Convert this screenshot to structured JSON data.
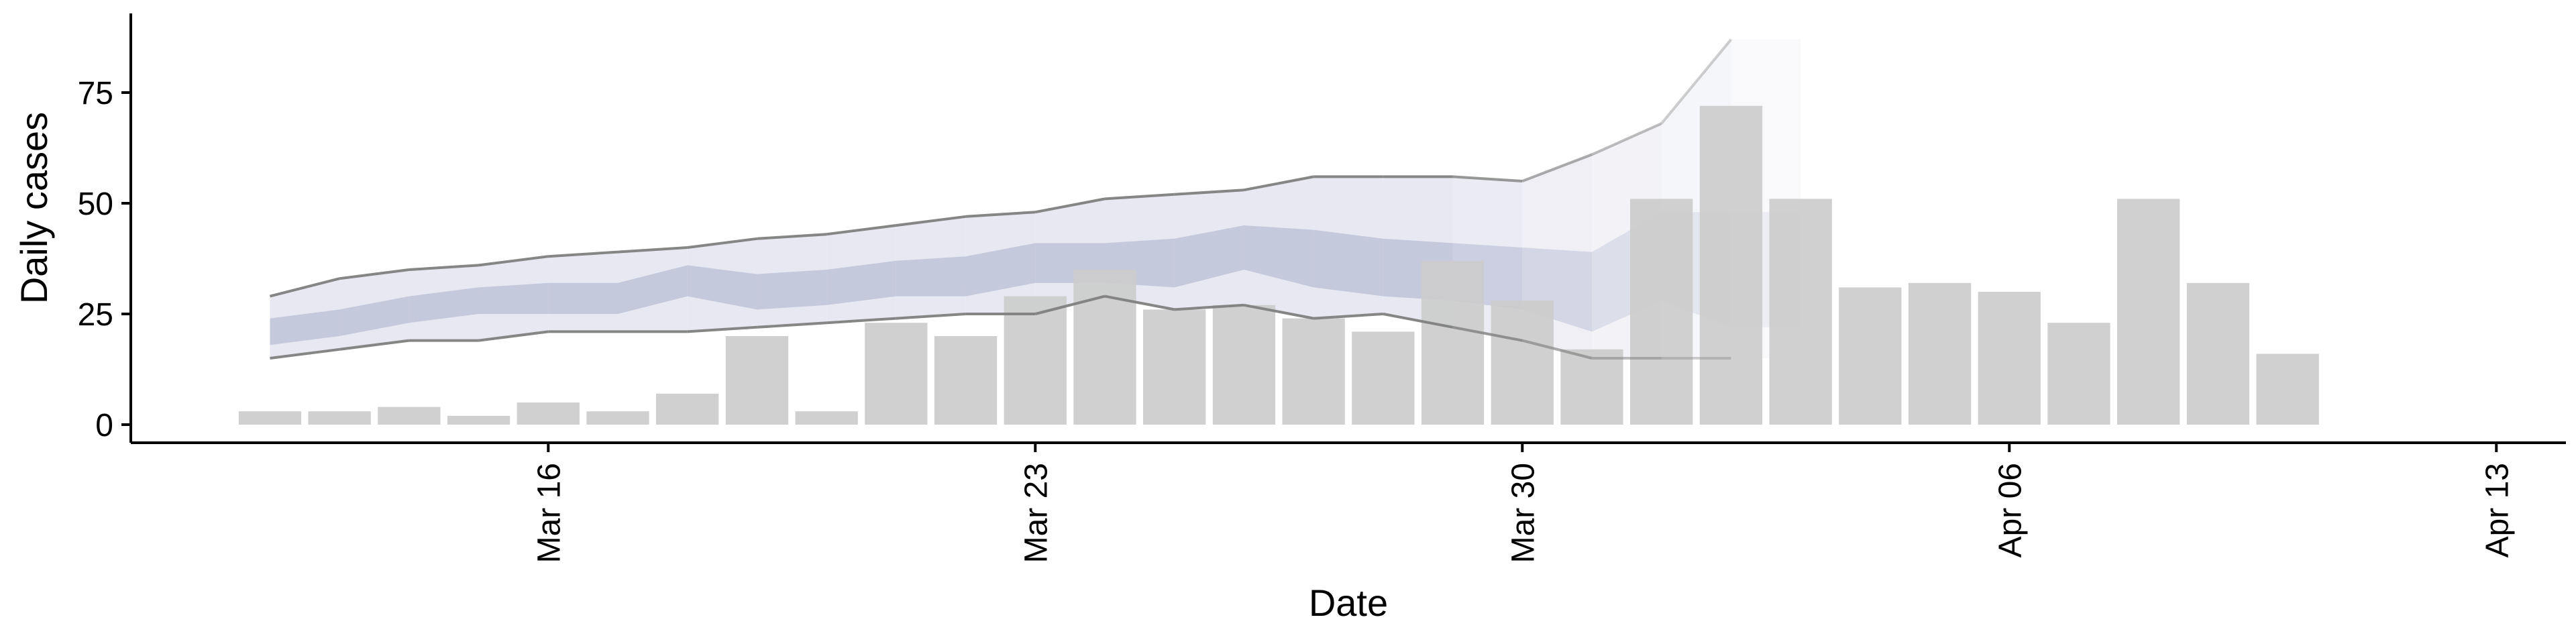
{
  "chart_data": {
    "type": "bar",
    "xlabel": "Date",
    "ylabel": "Daily cases",
    "xlim": [
      "2020-03-10",
      "2020-04-14"
    ],
    "ylim": [
      0,
      90
    ],
    "x_ticks": [
      {
        "date": "2020-03-16",
        "label": "Mar 16"
      },
      {
        "date": "2020-03-23",
        "label": "Mar 23"
      },
      {
        "date": "2020-03-30",
        "label": "Mar 30"
      },
      {
        "date": "2020-04-06",
        "label": "Apr 06"
      },
      {
        "date": "2020-04-13",
        "label": "Apr 13"
      }
    ],
    "y_ticks": [
      0,
      25,
      50,
      75
    ],
    "grid": false,
    "colors": {
      "bars": "#cccccc",
      "band": "#a9afcb",
      "line": "#808080"
    },
    "bars": {
      "dates": [
        "2020-03-12",
        "2020-03-13",
        "2020-03-14",
        "2020-03-15",
        "2020-03-16",
        "2020-03-17",
        "2020-03-18",
        "2020-03-19",
        "2020-03-20",
        "2020-03-21",
        "2020-03-22",
        "2020-03-23",
        "2020-03-24",
        "2020-03-25",
        "2020-03-26",
        "2020-03-27",
        "2020-03-28",
        "2020-03-29",
        "2020-03-30",
        "2020-03-31",
        "2020-04-01",
        "2020-04-02",
        "2020-04-03",
        "2020-04-04",
        "2020-04-05",
        "2020-04-06",
        "2020-04-07",
        "2020-04-08",
        "2020-04-09",
        "2020-04-10",
        "2020-04-11",
        "2020-04-12"
      ],
      "values": [
        3,
        3,
        4,
        2,
        5,
        3,
        7,
        20,
        3,
        23,
        20,
        29,
        35,
        26,
        27,
        24,
        21,
        37,
        28,
        17,
        51,
        72,
        51,
        31,
        32,
        30,
        23,
        51,
        32,
        16,
        0,
        0
      ]
    },
    "estimate": {
      "dates": [
        "2020-03-12",
        "2020-03-13",
        "2020-03-14",
        "2020-03-15",
        "2020-03-16",
        "2020-03-17",
        "2020-03-18",
        "2020-03-19",
        "2020-03-20",
        "2020-03-21",
        "2020-03-22",
        "2020-03-23",
        "2020-03-24",
        "2020-03-25",
        "2020-03-26",
        "2020-03-27",
        "2020-03-28",
        "2020-03-29",
        "2020-03-30",
        "2020-03-31",
        "2020-04-01",
        "2020-04-02",
        "2020-04-03"
      ],
      "outer_upper": [
        29,
        33,
        35,
        36,
        38,
        39,
        40,
        42,
        43,
        45,
        47,
        48,
        51,
        52,
        53,
        56,
        56,
        56,
        55,
        61,
        68,
        87,
        87
      ],
      "outer_lower": [
        15,
        17,
        19,
        19,
        21,
        21,
        21,
        22,
        23,
        24,
        25,
        25,
        29,
        26,
        27,
        24,
        25,
        22,
        19,
        15,
        15,
        15,
        15
      ],
      "inner_upper": [
        24,
        26,
        29,
        31,
        32,
        32,
        36,
        34,
        35,
        37,
        38,
        41,
        41,
        42,
        45,
        44,
        42,
        41,
        40,
        39,
        48,
        48,
        48
      ],
      "inner_lower": [
        18,
        20,
        23,
        25,
        25,
        25,
        29,
        26,
        27,
        29,
        29,
        32,
        32,
        31,
        35,
        31,
        29,
        28,
        26,
        21,
        28,
        22,
        22
      ]
    }
  }
}
